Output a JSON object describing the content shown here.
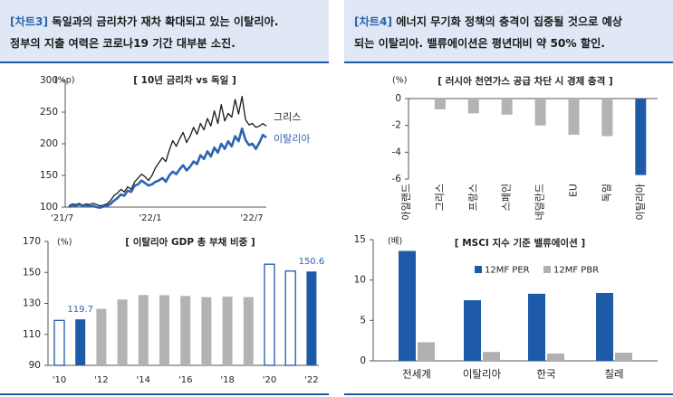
{
  "left_panel": {
    "tag": "[차트3]",
    "heading_line1": "독일과의 금리차가 재차 확대되고 있는 이탈리아.",
    "heading_line2": "정부의 지출 여력은 코로나19 기간 대부분 소진."
  },
  "right_panel": {
    "tag": "[차트4]",
    "heading_line1": "에너지 무기화 정책의 충격이 집중될 것으로 예상",
    "heading_line2": "되는 이탈리아. 밸류에이션은 평년대비 약 50% 할인."
  },
  "chart_data": [
    {
      "type": "line",
      "title": "[ 10년 금리차 vs 독일 ]",
      "unit": "(%p)",
      "ylim": [
        100,
        300
      ],
      "yticks": [
        100,
        150,
        200,
        250,
        300
      ],
      "x_tick_labels": [
        "'21/7",
        "'22/1",
        "'22/7"
      ],
      "x_start": "2021-07",
      "x_end": "2022-08",
      "grid": false,
      "series": [
        {
          "name": "그리스",
          "color": "#1a1a1a",
          "values": [
            102,
            105,
            104,
            106,
            103,
            105,
            104,
            106,
            104,
            102,
            103,
            105,
            110,
            118,
            122,
            128,
            124,
            132,
            128,
            140,
            146,
            152,
            148,
            142,
            150,
            162,
            170,
            178,
            172,
            190,
            205,
            196,
            208,
            218,
            202,
            212,
            226,
            215,
            232,
            222,
            240,
            228,
            252,
            232,
            262,
            236,
            248,
            242,
            270,
            247,
            275,
            238,
            230,
            232,
            226,
            228,
            232,
            228
          ]
        },
        {
          "name": "이탈리아",
          "color": "#2c64b0",
          "values": [
            100,
            103,
            102,
            104,
            102,
            103,
            101,
            102,
            100,
            99,
            101,
            102,
            105,
            110,
            114,
            120,
            118,
            126,
            124,
            134,
            136,
            142,
            138,
            134,
            136,
            140,
            142,
            146,
            140,
            150,
            156,
            152,
            160,
            166,
            158,
            164,
            172,
            168,
            182,
            176,
            188,
            180,
            194,
            186,
            200,
            192,
            204,
            196,
            212,
            204,
            224,
            206,
            198,
            200,
            192,
            202,
            214,
            210
          ]
        }
      ]
    },
    {
      "type": "bar",
      "title": "[ 이탈리아 GDP 총 부채 비중 ]",
      "unit": "(%)",
      "ylim": [
        90,
        170
      ],
      "yticks": [
        90,
        110,
        130,
        150,
        170
      ],
      "categories": [
        "'10",
        "'11",
        "'12",
        "'13",
        "'14",
        "'15",
        "'16",
        "'17",
        "'18",
        "'19",
        "'20",
        "'21",
        "'22"
      ],
      "x_tick_labels": [
        "'10",
        "'12",
        "'14",
        "'16",
        "'18",
        "'20",
        "'22"
      ],
      "values": [
        119.0,
        119.7,
        126.5,
        132.5,
        135.4,
        135.3,
        134.8,
        134.1,
        134.4,
        134.1,
        155.3,
        150.9,
        150.6
      ],
      "annotations": [
        {
          "category": "'11",
          "label": "119.7"
        },
        {
          "category": "'22",
          "label": "150.6"
        }
      ]
    },
    {
      "type": "bar",
      "title": "[ 러시아 천연가스 공급 차단 시 경제 충격 ]",
      "unit": "(%)",
      "ylim": [
        -6,
        0
      ],
      "yticks": [
        0,
        -2,
        -4,
        -6
      ],
      "categories": [
        "아일랜드",
        "그리스",
        "프랑스",
        "스페인",
        "네덜란드",
        "EU",
        "독일",
        "이탈리아"
      ],
      "values": [
        0.0,
        -0.8,
        -1.1,
        -1.2,
        -2.0,
        -2.7,
        -2.8,
        -5.7
      ]
    },
    {
      "type": "bar",
      "title": "[ MSCI 지수 기준 밸류에이션 ]",
      "unit": "(배)",
      "ylim": [
        0,
        15
      ],
      "yticks": [
        0,
        5,
        10,
        15
      ],
      "categories": [
        "전세계",
        "이탈리아",
        "한국",
        "칠레"
      ],
      "legend": "top-right",
      "series": [
        {
          "name": "12MF PER",
          "color": "#1d5aa8",
          "values": [
            13.6,
            7.5,
            8.3,
            8.4
          ]
        },
        {
          "name": "12MF PBR",
          "color": "#b0b0b0",
          "values": [
            2.3,
            1.1,
            0.9,
            1.0
          ]
        }
      ]
    }
  ]
}
